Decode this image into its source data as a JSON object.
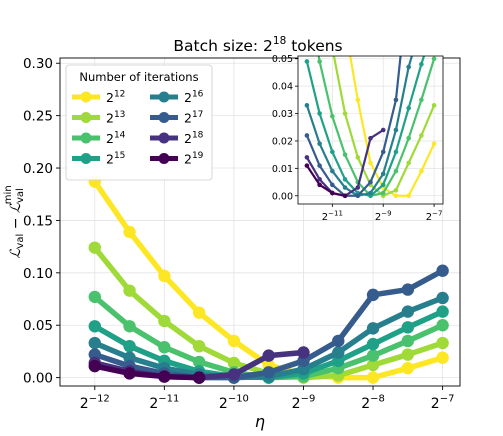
{
  "chart_data": {
    "type": "line",
    "title": "Batch size: 2",
    "title_sup": "18",
    "title_suffix": " tokens",
    "xlabel": "η",
    "ylabel": "L_val − L_val^min",
    "xscale": "log2",
    "ylim": [
      -0.008,
      0.305
    ],
    "xlim_log2": [
      -12.5,
      -6.75
    ],
    "grid": true,
    "x_ticks": [
      {
        "base": "2",
        "exp": "−12",
        "log2": -12
      },
      {
        "base": "2",
        "exp": "−11",
        "log2": -11
      },
      {
        "base": "2",
        "exp": "−10",
        "log2": -10
      },
      {
        "base": "2",
        "exp": "−9",
        "log2": -9
      },
      {
        "base": "2",
        "exp": "−8",
        "log2": -8
      },
      {
        "base": "2",
        "exp": "−7",
        "log2": -7
      }
    ],
    "y_ticks": [
      "0.00",
      "0.05",
      "0.10",
      "0.15",
      "0.20",
      "0.25",
      "0.30"
    ],
    "y_tick_values": [
      0.0,
      0.05,
      0.1,
      0.15,
      0.2,
      0.25,
      0.3
    ],
    "x_log2": [
      -12,
      -11.5,
      -11,
      -10.5,
      -10,
      -9.5,
      -9,
      -8.5,
      -8,
      -7.5,
      -7
    ],
    "legend": {
      "title": "Number of iterations",
      "placement": "upper-left"
    },
    "series": [
      {
        "name_base": "2",
        "name_exp": "12",
        "color": "#fde725",
        "values": [
          0.187,
          0.139,
          0.097,
          0.062,
          0.035,
          0.012,
          0.003,
          0.0,
          0.0,
          0.009,
          0.019
        ]
      },
      {
        "name_base": "2",
        "name_exp": "13",
        "color": "#a0da39",
        "values": [
          0.124,
          0.083,
          0.054,
          0.03,
          0.014,
          0.004,
          0.0,
          0.002,
          0.012,
          0.022,
          0.033
        ]
      },
      {
        "name_base": "2",
        "name_exp": "14",
        "color": "#4ac16d",
        "values": [
          0.077,
          0.049,
          0.029,
          0.015,
          0.005,
          0.0,
          0.001,
          0.009,
          0.021,
          0.035,
          0.05
        ]
      },
      {
        "name_base": "2",
        "name_exp": "15",
        "color": "#1fa187",
        "values": [
          0.049,
          0.03,
          0.016,
          0.006,
          0.001,
          0.0,
          0.004,
          0.016,
          0.032,
          0.048,
          0.063
        ]
      },
      {
        "name_base": "2",
        "name_exp": "16",
        "color": "#277f8e",
        "values": [
          0.033,
          0.019,
          0.009,
          0.003,
          0.0,
          0.001,
          0.008,
          0.024,
          0.047,
          0.063,
          0.076
        ]
      },
      {
        "name_base": "2",
        "name_exp": "17",
        "color": "#365c8d",
        "values": [
          0.022,
          0.011,
          0.004,
          0.0,
          0.0,
          0.005,
          0.016,
          0.035,
          0.079,
          0.084,
          0.102
        ]
      },
      {
        "name_base": "2",
        "name_exp": "18",
        "color": "#46327e",
        "values": [
          0.014,
          0.006,
          0.001,
          0.0,
          0.003,
          0.021,
          0.024,
          null,
          null,
          null,
          null
        ]
      },
      {
        "name_base": "2",
        "name_exp": "19",
        "color": "#440154",
        "values": [
          0.011,
          0.004,
          0.001,
          0.0,
          null,
          null,
          null,
          null,
          null,
          null,
          null
        ]
      }
    ],
    "inset": {
      "ylim": [
        -0.003,
        0.051
      ],
      "xlim_log2": [
        -12.35,
        -6.65
      ],
      "y_ticks": [
        "0.00",
        "0.01",
        "0.02",
        "0.03",
        "0.04",
        "0.05"
      ],
      "y_tick_values": [
        0.0,
        0.01,
        0.02,
        0.03,
        0.04,
        0.05
      ],
      "x_ticks": [
        {
          "base": "2",
          "exp": "−11",
          "log2": -11
        },
        {
          "base": "2",
          "exp": "−9",
          "log2": -9
        },
        {
          "base": "2",
          "exp": "−7",
          "log2": -7
        }
      ]
    }
  }
}
